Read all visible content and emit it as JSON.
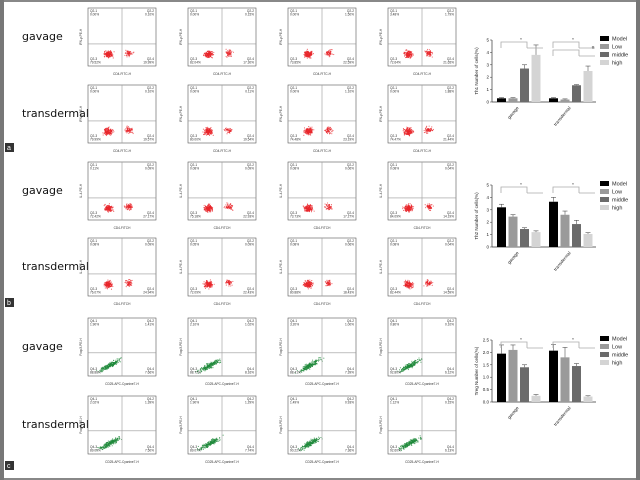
{
  "panels": [
    {
      "letter": "a",
      "marker": "red",
      "x_axis_label": "CD4-FITC-H",
      "y_axis_label": "IFN-γ-PE-H",
      "quadrant_names": [
        "Q2-1",
        "Q2-2",
        "Q2-3",
        "Q2-4"
      ],
      "rows": [
        {
          "label": "gavage",
          "plots": [
            [
              "0.00%",
              "0.10%",
              "79.52%",
              "19.99%"
            ],
            [
              "0.00%",
              "0.15%",
              "82.04%",
              "17.30%"
            ],
            [
              "0.00%",
              "1.50%",
              "73.85%",
              "22.59%"
            ],
            [
              "3.48%",
              "1.79%",
              "72.64%",
              "21.65%"
            ]
          ]
        },
        {
          "label": "transdermal",
          "plots": [
            [
              "0.00%",
              "0.10%",
              "79.99%",
              "19.57%"
            ],
            [
              "0.00%",
              "0.11%",
              "80.00%",
              "19.54%"
            ],
            [
              "0.00%",
              "1.10%",
              "74.48%",
              "23.19%"
            ],
            [
              "0.00%",
              "1.88%",
              "74.47%",
              "21.44%"
            ]
          ]
        }
      ]
    },
    {
      "letter": "b",
      "marker": "red",
      "x_axis_label": "CD4-FITCH",
      "y_axis_label": "IL-4-PE-H",
      "quadrant_names": [
        "Q2-1",
        "Q2-2",
        "Q2-3",
        "Q2-4"
      ],
      "rows": [
        {
          "label": "gavage",
          "plots": [
            [
              "0.11%",
              "0.09%",
              "72.42%",
              "27.17%"
            ],
            [
              "0.08%",
              "0.09%",
              "75.18%",
              "22.93%"
            ],
            [
              "0.08%",
              "0.06%",
              "73.73%",
              "17.27%"
            ],
            [
              "0.08%",
              "0.04%",
              "84.09%",
              "14.19%"
            ]
          ]
        },
        {
          "label": "transdermal",
          "plots": [
            [
              "0.08%",
              "0.09%",
              "76.07%",
              "24.94%"
            ],
            [
              "0.05%",
              "0.09%",
              "72.09%",
              "22.43%"
            ],
            [
              "0.08%",
              "0.06%",
              "80.88%",
              "18.43%"
            ],
            [
              "0.08%",
              "0.04%",
              "82.44%",
              "14.59%"
            ]
          ]
        }
      ]
    },
    {
      "letter": "c",
      "marker": "green",
      "x_axis_label": "CD25-APC-Cyanine7-H",
      "y_axis_label": "Foxp3-PE-H",
      "quadrant_names": [
        "Q4-1",
        "Q4-2",
        "Q4-3",
        "Q4-4"
      ],
      "rows": [
        {
          "label": "gavage",
          "plots": [
            [
              "1.90%",
              "1.41%",
              "88.88%",
              "7.66%"
            ],
            [
              "2.10%",
              "1.02%",
              "88.72%",
              "8.16%"
            ],
            [
              "3.20%",
              "1.00%",
              "88.41%",
              "7.39%"
            ],
            [
              "0.80%",
              "0.10%",
              "92.80%",
              "6.12%"
            ]
          ]
        },
        {
          "label": "transdermal",
          "plots": [
            [
              "2.02%",
              "1.39%",
              "89.09%",
              "7.50%"
            ],
            [
              "1.90%",
              "1.29%",
              "89.07%",
              "7.74%"
            ],
            [
              "1.49%",
              "0.93%",
              "90.22%",
              "7.36%"
            ],
            [
              "1.12%",
              "0.15%",
              "92.60%",
              "6.13%"
            ]
          ]
        }
      ]
    }
  ],
  "colors": {
    "red_dots": "#e8262b",
    "green_dots": "#1f8a3b",
    "Model": "#000000",
    "Low": "#9a9a9a",
    "middle": "#6b6b6b",
    "high": "#d4d4d4"
  },
  "chart_data": [
    {
      "type": "bar",
      "title": "",
      "ylabel": "Th1 Number of cells(%)",
      "xlabel": "",
      "categories": [
        "gavage",
        "transdermal"
      ],
      "ylim": [
        0,
        5
      ],
      "yticks": [
        "0",
        "1",
        "2",
        "3",
        "4",
        "5"
      ],
      "series": [
        {
          "name": "Model",
          "values": [
            0.3,
            0.3
          ]
        },
        {
          "name": "Low",
          "values": [
            0.3,
            0.2
          ]
        },
        {
          "name": "middle",
          "values": [
            2.7,
            1.35
          ]
        },
        {
          "name": "high",
          "values": [
            3.8,
            2.5
          ]
        }
      ],
      "errors": [
        [
          0.05,
          0.05
        ],
        [
          0.05,
          0.05
        ],
        [
          0.3,
          0.05
        ],
        [
          0.8,
          0.4
        ]
      ],
      "annotations": [
        "*",
        "*",
        "#"
      ],
      "legend": "right"
    },
    {
      "type": "bar",
      "title": "",
      "ylabel": "Th2 Number of cells(%)",
      "xlabel": "",
      "categories": [
        "gavage",
        "transdermal"
      ],
      "ylim": [
        0,
        5
      ],
      "yticks": [
        "0",
        "1",
        "2",
        "3",
        "4",
        "5"
      ],
      "series": [
        {
          "name": "Model",
          "values": [
            3.2,
            3.65
          ]
        },
        {
          "name": "Low",
          "values": [
            2.45,
            2.6
          ]
        },
        {
          "name": "middle",
          "values": [
            1.45,
            1.85
          ]
        },
        {
          "name": "high",
          "values": [
            1.2,
            1.05
          ]
        }
      ],
      "errors": [
        [
          0.25,
          0.35
        ],
        [
          0.15,
          0.3
        ],
        [
          0.1,
          0.3
        ],
        [
          0.1,
          0.1
        ]
      ],
      "annotations": [
        "*",
        "*"
      ],
      "legend": "right"
    },
    {
      "type": "bar",
      "title": "",
      "ylabel": "Treg Number of cells(%)",
      "xlabel": "",
      "categories": [
        "gavage",
        "transdermal"
      ],
      "ylim": [
        0,
        2.5
      ],
      "yticks": [
        "0.0",
        "0.5",
        "1.0",
        "1.5",
        "2.0",
        "2.5"
      ],
      "series": [
        {
          "name": "Model",
          "values": [
            1.95,
            2.07
          ]
        },
        {
          "name": "Low",
          "values": [
            2.1,
            1.8
          ]
        },
        {
          "name": "middle",
          "values": [
            1.4,
            1.45
          ]
        },
        {
          "name": "high",
          "values": [
            0.25,
            0.22
          ]
        }
      ],
      "errors": [
        [
          0.35,
          0.25
        ],
        [
          0.2,
          0.4
        ],
        [
          0.1,
          0.1
        ],
        [
          0.05,
          0.03
        ]
      ],
      "annotations": [
        "*",
        "*"
      ],
      "legend": "right"
    }
  ]
}
